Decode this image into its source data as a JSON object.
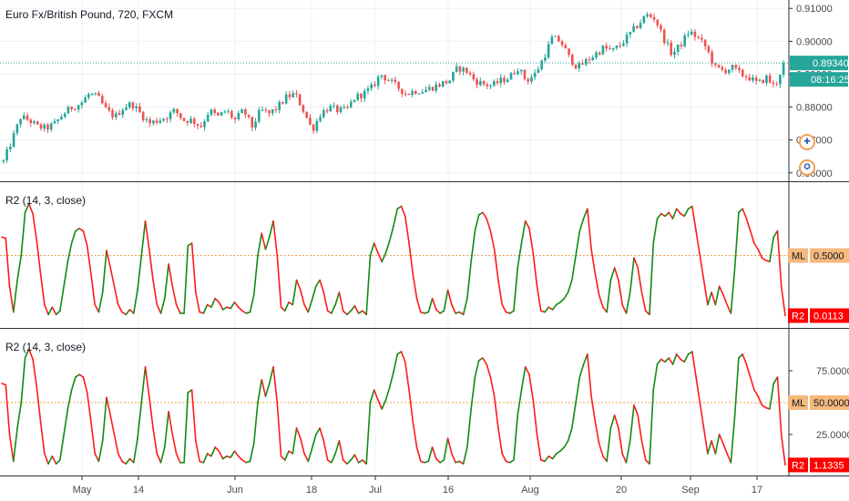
{
  "colors": {
    "up": "#26a69a",
    "down": "#ef5350",
    "r2_up": "#138a13",
    "r2_down": "#ff1a1a",
    "midline": "#f0a050",
    "price_tag": "#26a69a",
    "ml_tag": "#f5b97d",
    "r2_tag": "#ff0000",
    "grid": "#eef0f3",
    "axis_line": "#2a2e39"
  },
  "panes": {
    "price": {
      "title": "Euro Fx/British Pound, 720, FXCM",
      "last_price": "0.89340",
      "countdown": "08:16:25"
    },
    "r2_top": {
      "title": "R2 (14, 3, close)",
      "ml_label": "ML",
      "ml_value": "0.5000",
      "r2_label": "R2",
      "r2_value": "0.0113"
    },
    "r2_bottom": {
      "title": "R2 (14, 3, close)",
      "ml_label": "ML",
      "ml_value": "50.0000",
      "r2_label": "R2",
      "r2_value": "1.1335"
    }
  },
  "badges": [
    {
      "name": "flag-gb-icon",
      "glyph": "✚"
    },
    {
      "name": "flag-eu-icon",
      "glyph": "✪"
    }
  ],
  "chart_data": [
    {
      "type": "candlestick",
      "title": "Euro Fx/British Pound, 720, FXCM",
      "ylim": [
        0.858,
        0.912
      ],
      "yticks": [
        "0.86000",
        "0.87000",
        "0.88000",
        "0.89000",
        "0.90000",
        "0.91000"
      ],
      "ytick_values": [
        0.86,
        0.87,
        0.88,
        0.89,
        0.9,
        0.91
      ],
      "last_value": 0.8934,
      "x_tick_labels": [
        "May",
        "14",
        "Jun",
        "18",
        "Jul",
        "16",
        "Aug",
        "20",
        "Sep",
        "17"
      ],
      "close_path": [
        0.8635,
        0.87,
        0.877,
        0.876,
        0.874,
        0.8735,
        0.875,
        0.878,
        0.88,
        0.881,
        0.884,
        0.883,
        0.879,
        0.877,
        0.88,
        0.881,
        0.878,
        0.875,
        0.876,
        0.877,
        0.879,
        0.876,
        0.876,
        0.874,
        0.879,
        0.877,
        0.879,
        0.876,
        0.879,
        0.874,
        0.879,
        0.878,
        0.88,
        0.883,
        0.884,
        0.879,
        0.873,
        0.878,
        0.88,
        0.879,
        0.879,
        0.883,
        0.884,
        0.886,
        0.89,
        0.888,
        0.886,
        0.884,
        0.885,
        0.885,
        0.886,
        0.887,
        0.888,
        0.892,
        0.891,
        0.888,
        0.887,
        0.8865,
        0.888,
        0.889,
        0.892,
        0.888,
        0.89,
        0.895,
        0.901,
        0.9,
        0.895,
        0.892,
        0.894,
        0.896,
        0.898,
        0.897,
        0.899,
        0.902,
        0.905,
        0.908,
        0.907,
        0.901,
        0.896,
        0.899,
        0.903,
        0.901,
        0.898,
        0.892,
        0.891,
        0.892,
        0.89,
        0.889,
        0.887,
        0.889,
        0.886,
        0.8934
      ]
    },
    {
      "type": "line",
      "title": "R2 (14, 3, close)",
      "ylim": [
        0,
        1
      ],
      "midline": 0.5,
      "last_value": 0.0113,
      "series": [
        {
          "values": [
            65,
            64,
            25,
            4,
            30,
            50,
            85,
            92,
            84,
            62,
            35,
            10,
            2,
            8,
            2,
            5,
            25,
            45,
            60,
            70,
            72,
            70,
            58,
            35,
            10,
            4,
            20,
            54,
            40,
            25,
            10,
            4,
            2,
            6,
            3,
            22,
            50,
            78,
            55,
            30,
            10,
            3,
            15,
            43,
            25,
            10,
            3,
            3,
            58,
            60,
            20,
            4,
            3,
            10,
            8,
            15,
            12,
            6,
            8,
            7,
            12,
            8,
            5,
            3,
            4,
            18,
            50,
            68,
            55,
            65,
            78,
            50,
            8,
            5,
            12,
            10,
            30,
            22,
            10,
            4,
            14,
            25,
            30,
            20,
            5,
            3,
            10,
            20,
            5,
            2,
            5,
            9,
            3,
            5,
            2,
            50,
            60,
            52,
            45,
            52,
            62,
            74,
            88,
            90,
            82,
            60,
            35,
            15,
            4,
            3,
            4,
            15,
            6,
            3,
            5,
            22,
            10,
            3,
            4,
            2,
            15,
            45,
            70,
            83,
            85,
            80,
            70,
            55,
            30,
            10,
            4,
            3,
            5,
            40,
            60,
            78,
            72,
            52,
            25,
            5,
            4,
            8,
            6,
            10,
            12,
            15,
            20,
            30,
            50,
            70,
            80,
            88,
            55,
            35,
            18,
            8,
            4,
            30,
            40,
            30,
            10,
            3,
            20,
            48,
            40,
            20,
            5,
            2,
            60,
            80,
            84,
            82,
            85,
            80,
            88,
            84,
            82,
            88,
            90,
            70,
            50,
            30,
            10,
            20,
            10,
            25,
            18,
            10,
            3,
            40,
            85,
            88,
            80,
            70,
            60,
            55,
            48,
            46,
            45,
            65,
            70,
            25,
            1.1
          ]
        }
      ]
    },
    {
      "type": "line",
      "title": "R2 (14, 3, close)",
      "ylim": [
        0,
        100
      ],
      "yticks": [
        "25.0000",
        "75.0000"
      ],
      "ytick_values": [
        25,
        75
      ],
      "midline": 50,
      "last_value": 1.1335,
      "series": [
        {
          "values": [
            65,
            64,
            25,
            4,
            30,
            50,
            85,
            92,
            84,
            62,
            35,
            10,
            2,
            8,
            2,
            5,
            25,
            45,
            60,
            70,
            72,
            70,
            58,
            35,
            10,
            4,
            20,
            54,
            40,
            25,
            10,
            4,
            2,
            6,
            3,
            22,
            50,
            78,
            55,
            30,
            10,
            3,
            15,
            43,
            25,
            10,
            3,
            3,
            58,
            60,
            20,
            4,
            3,
            10,
            8,
            15,
            12,
            6,
            8,
            7,
            12,
            8,
            5,
            3,
            4,
            18,
            50,
            68,
            55,
            65,
            78,
            50,
            8,
            5,
            12,
            10,
            30,
            22,
            10,
            4,
            14,
            25,
            30,
            20,
            5,
            3,
            10,
            20,
            5,
            2,
            5,
            9,
            3,
            5,
            2,
            50,
            60,
            52,
            45,
            52,
            62,
            74,
            88,
            90,
            82,
            60,
            35,
            15,
            4,
            3,
            4,
            15,
            6,
            3,
            5,
            22,
            10,
            3,
            4,
            2,
            15,
            45,
            70,
            83,
            85,
            80,
            70,
            55,
            30,
            10,
            4,
            3,
            5,
            40,
            60,
            78,
            72,
            52,
            25,
            5,
            4,
            8,
            6,
            10,
            12,
            15,
            20,
            30,
            50,
            70,
            80,
            88,
            55,
            35,
            18,
            8,
            4,
            30,
            40,
            30,
            10,
            3,
            20,
            48,
            40,
            20,
            5,
            2,
            60,
            80,
            84,
            82,
            85,
            80,
            88,
            84,
            82,
            88,
            90,
            70,
            50,
            30,
            10,
            20,
            10,
            25,
            18,
            10,
            3,
            40,
            85,
            88,
            80,
            70,
            60,
            55,
            48,
            46,
            45,
            65,
            70,
            25,
            1.1
          ]
        }
      ]
    }
  ]
}
